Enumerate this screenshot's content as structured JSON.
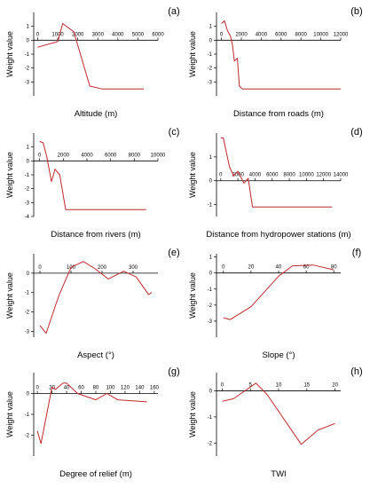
{
  "figure": {
    "series_color": "#c0282d",
    "y_axis_label": "Weight value"
  },
  "chart_data": [
    {
      "type": "line",
      "panel": "(a)",
      "xlabel": "Altitude (m)",
      "ylabel": "Weight value",
      "xlim": [
        -200,
        6000
      ],
      "ylim": [
        -4,
        2
      ],
      "xticks": [
        0,
        1000,
        2000,
        3000,
        4000,
        5000,
        6000
      ],
      "yticks": [
        -3,
        -2,
        -1,
        0,
        1
      ],
      "x": [
        0,
        1000,
        1250,
        1800,
        2600,
        3200,
        5300
      ],
      "y": [
        -0.5,
        -0.1,
        1.2,
        0.6,
        -3.3,
        -3.5,
        -3.5
      ]
    },
    {
      "type": "line",
      "panel": "(b)",
      "xlabel": "Distance from roads (m)",
      "ylabel": "Weight value",
      "xlim": [
        -500,
        12000
      ],
      "ylim": [
        -4,
        2
      ],
      "xticks": [
        0,
        2000,
        4000,
        6000,
        8000,
        10000,
        12000
      ],
      "yticks": [
        -3,
        -2,
        -1,
        0,
        1
      ],
      "x": [
        0,
        300,
        600,
        900,
        1100,
        1300,
        1600,
        1800,
        2100,
        12000
      ],
      "y": [
        1.2,
        1.4,
        0.7,
        0.3,
        -0.3,
        -1.5,
        -1.3,
        -3.3,
        -3.5,
        -3.5
      ]
    },
    {
      "type": "line",
      "panel": "(c)",
      "xlabel": "Distance from rivers (m)",
      "ylabel": "Weight value",
      "xlim": [
        -500,
        10000
      ],
      "ylim": [
        -4,
        2
      ],
      "xticks": [
        0,
        2000,
        4000,
        6000,
        8000,
        10000
      ],
      "yticks": [
        -4,
        -3,
        -2,
        -1,
        0,
        1
      ],
      "x": [
        0,
        300,
        600,
        1000,
        1300,
        1700,
        2200,
        9000
      ],
      "y": [
        1.4,
        1.3,
        0.3,
        -1.5,
        -0.6,
        -1.0,
        -3.5,
        -3.5
      ]
    },
    {
      "type": "line",
      "panel": "(d)",
      "xlabel": "Distance from hydropower stations (m)",
      "ylabel": "Weight value",
      "xlim": [
        -500,
        14000
      ],
      "ylim": [
        -1.5,
        2
      ],
      "xticks": [
        0,
        2000,
        4000,
        6000,
        8000,
        10000,
        12000,
        14000
      ],
      "yticks": [
        -1,
        0,
        1
      ],
      "x": [
        0,
        300,
        1000,
        1500,
        2000,
        2700,
        3200,
        3700,
        13000
      ],
      "y": [
        1.8,
        1.8,
        0.6,
        0.2,
        0.4,
        -0.1,
        0.1,
        -1.1,
        -1.1
      ]
    },
    {
      "type": "line",
      "panel": "(e)",
      "xlabel": "Aspect (°)",
      "ylabel": "Weight value",
      "xlim": [
        -20,
        380
      ],
      "ylim": [
        -3.3,
        1
      ],
      "xticks": [
        0,
        100,
        200,
        300
      ],
      "yticks": [
        -3,
        -2,
        -1,
        0
      ],
      "x": [
        0,
        20,
        60,
        100,
        140,
        180,
        220,
        270,
        310,
        350,
        360
      ],
      "y": [
        -2.7,
        -3.1,
        -1.2,
        0.3,
        0.6,
        0.2,
        -0.3,
        0.1,
        -0.2,
        -1.1,
        -1.0
      ]
    },
    {
      "type": "line",
      "panel": "(f)",
      "xlabel": "Slope (°)",
      "ylabel": "Weight value",
      "xlim": [
        -5,
        85
      ],
      "ylim": [
        -4,
        1.2
      ],
      "xticks": [
        0,
        20,
        40,
        60,
        80
      ],
      "yticks": [
        -3,
        -2,
        -1,
        0,
        1
      ],
      "x": [
        0,
        5,
        20,
        40,
        50,
        65,
        80
      ],
      "y": [
        -2.8,
        -2.9,
        -2.1,
        -0.2,
        0.45,
        0.5,
        0.2
      ]
    },
    {
      "type": "line",
      "panel": "(g)",
      "xlabel": "Degree of relief (m)",
      "ylabel": "Weight value",
      "xlim": [
        -5,
        165
      ],
      "ylim": [
        -3,
        1
      ],
      "xticks": [
        0,
        20,
        40,
        60,
        80,
        100,
        120,
        140,
        160
      ],
      "yticks": [
        -2,
        -1,
        0
      ],
      "x": [
        0,
        5,
        20,
        25,
        35,
        40,
        55,
        80,
        95,
        110,
        150
      ],
      "y": [
        -1.8,
        -2.4,
        0.3,
        0.2,
        0.5,
        0.5,
        0.0,
        -0.3,
        0.0,
        -0.3,
        -0.4
      ]
    },
    {
      "type": "line",
      "panel": "(h)",
      "xlabel": "TWI",
      "ylabel": "Weight value",
      "xlim": [
        -1,
        21
      ],
      "ylim": [
        -2.5,
        0.7
      ],
      "xticks": [
        0,
        5,
        10,
        15,
        20
      ],
      "yticks": [
        -2,
        -1,
        0
      ],
      "x": [
        0,
        2,
        4,
        6,
        8,
        14,
        17,
        20
      ],
      "y": [
        -0.4,
        -0.3,
        0.0,
        0.3,
        -0.15,
        -2.05,
        -1.5,
        -1.25
      ]
    }
  ]
}
